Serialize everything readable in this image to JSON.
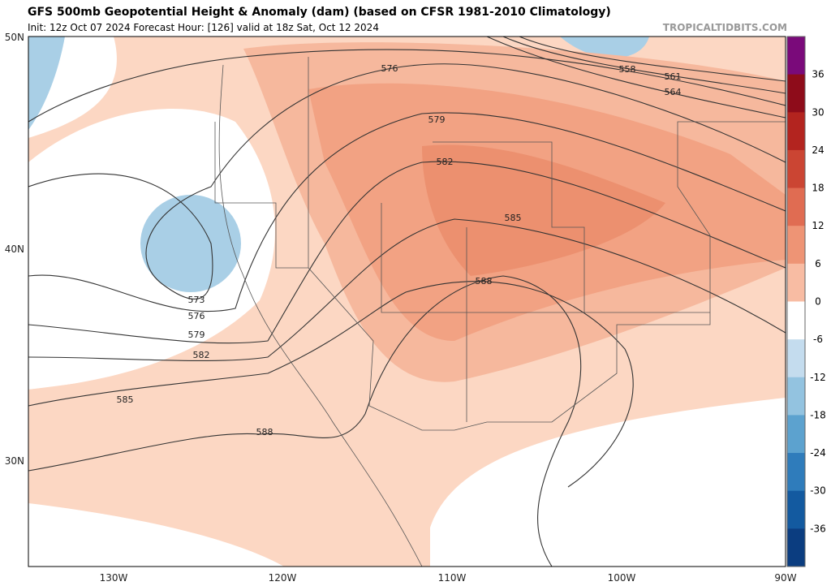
{
  "header": {
    "title": "GFS 500mb Geopotential Height & Anomaly (dam) (based on CFSR 1981-2010 Climatology)",
    "subtitle": "Init: 12z Oct 07 2024   Forecast Hour: [126]   valid at 18z Sat, Oct 12 2024",
    "watermark": "TROPICALTIDBITS.COM"
  },
  "map": {
    "lat_labels": [
      "50N",
      "40N",
      "30N"
    ],
    "lon_labels": [
      "130W",
      "120W",
      "110W",
      "100W",
      "90W"
    ],
    "contour_labels": [
      576,
      579,
      582,
      585,
      588,
      558,
      561,
      564,
      573,
      576,
      579,
      582,
      585,
      588
    ]
  },
  "colorbar": {
    "ticks": [
      36,
      30,
      24,
      18,
      12,
      6,
      0,
      -6,
      -12,
      -18,
      -24,
      -30,
      -36
    ],
    "colors": [
      "#7a0a7a",
      "#8e0c1a",
      "#b3241f",
      "#cb4533",
      "#e06c52",
      "#ee9475",
      "#f8bca3",
      "#ffffff",
      "#c4dcee",
      "#93c3e0",
      "#5ca2cf",
      "#2f7cbb",
      "#135aa0",
      "#0b3d80"
    ]
  }
}
